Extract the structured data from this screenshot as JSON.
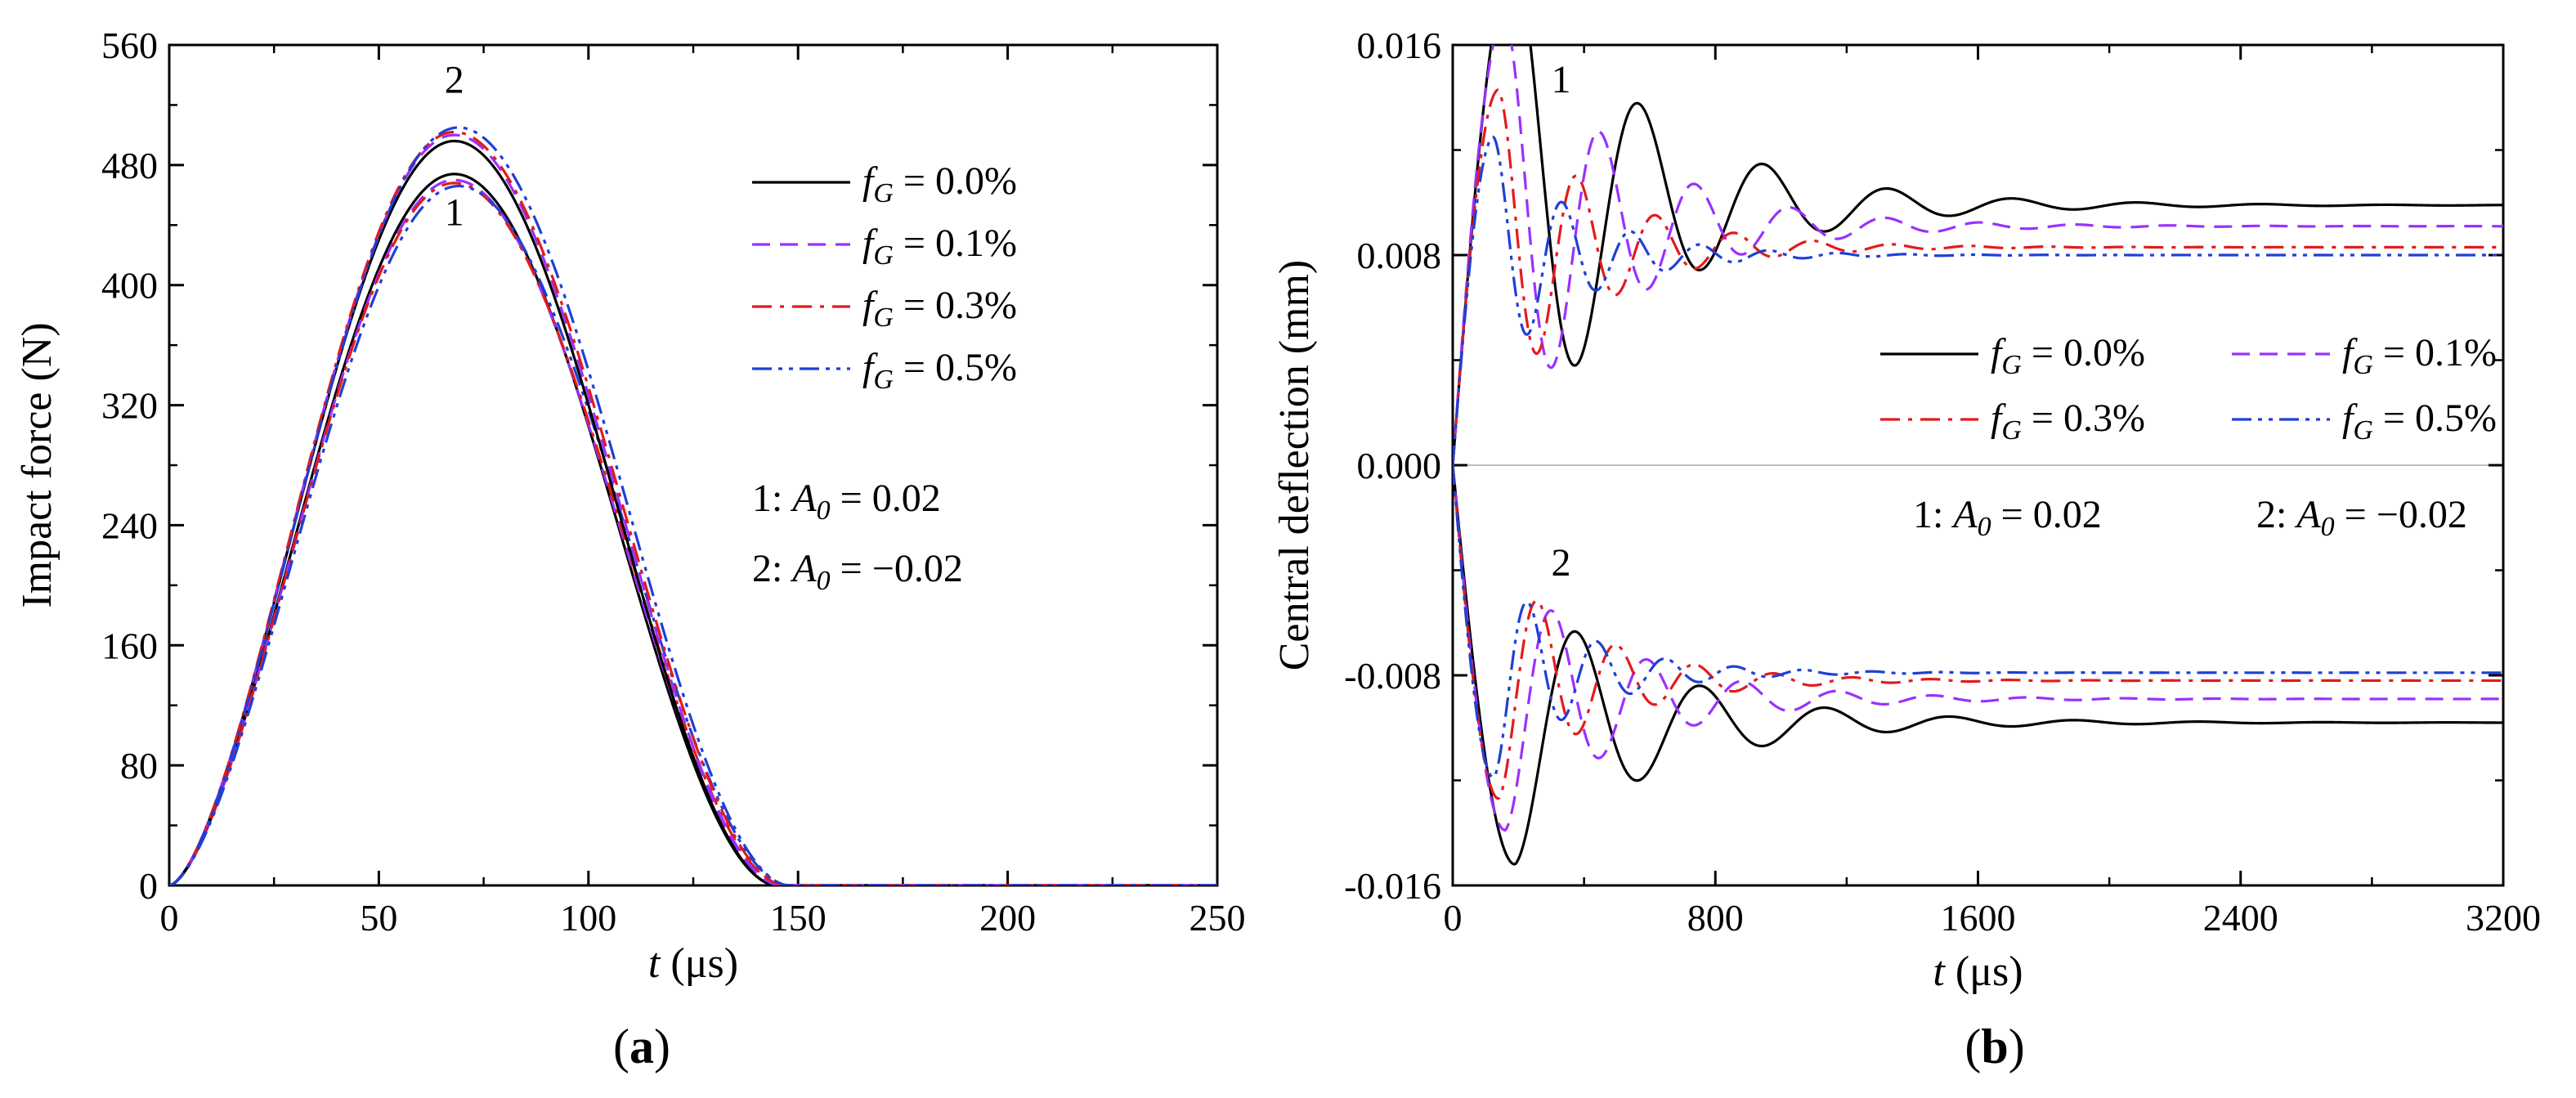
{
  "chart_data": [
    {
      "type": "line",
      "panel_label_open": "(",
      "panel_label_letter": "a",
      "panel_label_close": ")",
      "xlabel_var": "t",
      "xlabel_unit": " (μs)",
      "ylabel": "Impact force (N)",
      "xlim": [
        0,
        250
      ],
      "ylim": [
        0,
        560
      ],
      "xticks": [
        0,
        50,
        100,
        150,
        200,
        250
      ],
      "yticks": [
        0,
        80,
        160,
        240,
        320,
        400,
        480,
        560
      ],
      "legend_position": "right-middle",
      "legend": [
        {
          "var": "f",
          "sub": "G",
          "text": " = 0.0%",
          "color": "#000000",
          "dash": "solid"
        },
        {
          "var": "f",
          "sub": "G",
          "text": " = 0.1%",
          "color": "#9b30ff",
          "dash": "dash"
        },
        {
          "var": "f",
          "sub": "G",
          "text": " = 0.3%",
          "color": "#e41a1c",
          "dash": "dashdot"
        },
        {
          "var": "f",
          "sub": "G",
          "text": " = 0.5%",
          "color": "#1f3fd6",
          "dash": "dashdotdot"
        }
      ],
      "case_labels": [
        {
          "prefix": "1: ",
          "var": "A",
          "sub": "0",
          "text": " = 0.02"
        },
        {
          "prefix": "2: ",
          "var": "A",
          "sub": "0",
          "text": " = −0.02"
        }
      ],
      "annotations": [
        {
          "text": "2",
          "x": 68,
          "y": 528
        },
        {
          "text": "1",
          "x": 68,
          "y": 440
        }
      ],
      "series_model": "pulse",
      "series": [
        {
          "name": "fG=0.0%, A0=0.02",
          "peak": 474,
          "tpeak": 68,
          "tend": 145,
          "color": "#000000",
          "dash": "solid"
        },
        {
          "name": "fG=0.1%, A0=0.02",
          "peak": 470,
          "tpeak": 68,
          "tend": 146,
          "color": "#9b30ff",
          "dash": "dash"
        },
        {
          "name": "fG=0.3%, A0=0.02",
          "peak": 468,
          "tpeak": 68,
          "tend": 147,
          "color": "#e41a1c",
          "dash": "dashdot"
        },
        {
          "name": "fG=0.5%, A0=0.02",
          "peak": 466,
          "tpeak": 69,
          "tend": 148,
          "color": "#1f3fd6",
          "dash": "dashdotdot"
        },
        {
          "name": "fG=0.0%, A0=-0.02",
          "peak": 496,
          "tpeak": 68,
          "tend": 145,
          "color": "#000000",
          "dash": "solid"
        },
        {
          "name": "fG=0.1%, A0=-0.02",
          "peak": 500,
          "tpeak": 68,
          "tend": 146,
          "color": "#9b30ff",
          "dash": "dash"
        },
        {
          "name": "fG=0.3%, A0=-0.02",
          "peak": 502,
          "tpeak": 68,
          "tend": 147,
          "color": "#e41a1c",
          "dash": "dashdot"
        },
        {
          "name": "fG=0.5%, A0=-0.02",
          "peak": 505,
          "tpeak": 69,
          "tend": 148,
          "color": "#1f3fd6",
          "dash": "dashdotdot"
        }
      ]
    },
    {
      "type": "line",
      "panel_label_open": "(",
      "panel_label_letter": "b",
      "panel_label_close": ")",
      "xlabel_var": "t",
      "xlabel_unit": " (μs)",
      "ylabel": "Central deflection (mm)",
      "xlim": [
        0,
        3200
      ],
      "ylim": [
        -0.016,
        0.016
      ],
      "xticks": [
        0,
        800,
        1600,
        2400,
        3200
      ],
      "yticks": [
        -0.016,
        -0.008,
        0.0,
        0.008,
        0.016
      ],
      "ytick_labels": [
        "-0.016",
        "-0.008",
        "0.000",
        "0.008",
        "0.016"
      ],
      "legend_position": "right-middle",
      "legend": [
        {
          "var": "f",
          "sub": "G",
          "text": " = 0.0%",
          "color": "#000000",
          "dash": "solid"
        },
        {
          "var": "f",
          "sub": "G",
          "text": " = 0.1%",
          "color": "#9b30ff",
          "dash": "dash"
        },
        {
          "var": "f",
          "sub": "G",
          "text": " = 0.3%",
          "color": "#e41a1c",
          "dash": "dashdot"
        },
        {
          "var": "f",
          "sub": "G",
          "text": " = 0.5%",
          "color": "#1f3fd6",
          "dash": "dashdotdot"
        }
      ],
      "case_labels": [
        {
          "prefix": "1: ",
          "var": "A",
          "sub": "0",
          "text": " = 0.02"
        },
        {
          "prefix": "2: ",
          "var": "A",
          "sub": "0",
          "text": " = −0.02"
        }
      ],
      "annotations": [
        {
          "text": "1",
          "x": 330,
          "y": 0.0142
        },
        {
          "text": "2",
          "x": 330,
          "y": -0.0042
        }
      ],
      "series_model": "damped_oscillation",
      "series": [
        {
          "name": "fG=0.0%, A0=0.02",
          "steady": 0.0099,
          "amp": 0.0095,
          "period": 380,
          "tpeak": 190,
          "tau": 420,
          "color": "#000000",
          "dash": "solid"
        },
        {
          "name": "fG=0.1%, A0=0.02",
          "steady": 0.0091,
          "amp": 0.008,
          "period": 290,
          "tpeak": 160,
          "tau": 360,
          "color": "#9b30ff",
          "dash": "dash"
        },
        {
          "name": "fG=0.3%, A0=0.02",
          "steady": 0.0083,
          "amp": 0.006,
          "period": 240,
          "tpeak": 140,
          "tau": 300,
          "color": "#e41a1c",
          "dash": "dashdot"
        },
        {
          "name": "fG=0.5%, A0=0.02",
          "steady": 0.008,
          "amp": 0.0045,
          "period": 210,
          "tpeak": 125,
          "tau": 260,
          "color": "#1f3fd6",
          "dash": "dashdotdot"
        },
        {
          "name": "fG=0.0%, A0=-0.02",
          "steady": -0.0098,
          "amp": -0.0054,
          "period": 380,
          "tpeak": 190,
          "tau": 420,
          "color": "#000000",
          "dash": "solid"
        },
        {
          "name": "fG=0.1%, A0=-0.02",
          "steady": -0.0089,
          "amp": -0.005,
          "period": 290,
          "tpeak": 160,
          "tau": 360,
          "color": "#9b30ff",
          "dash": "dash"
        },
        {
          "name": "fG=0.3%, A0=-0.02",
          "steady": -0.0082,
          "amp": -0.0045,
          "period": 240,
          "tpeak": 140,
          "tau": 300,
          "color": "#e41a1c",
          "dash": "dashdot"
        },
        {
          "name": "fG=0.5%, A0=-0.02",
          "steady": -0.0079,
          "amp": -0.004,
          "period": 210,
          "tpeak": 125,
          "tau": 260,
          "color": "#1f3fd6",
          "dash": "dashdotdot"
        }
      ]
    }
  ]
}
